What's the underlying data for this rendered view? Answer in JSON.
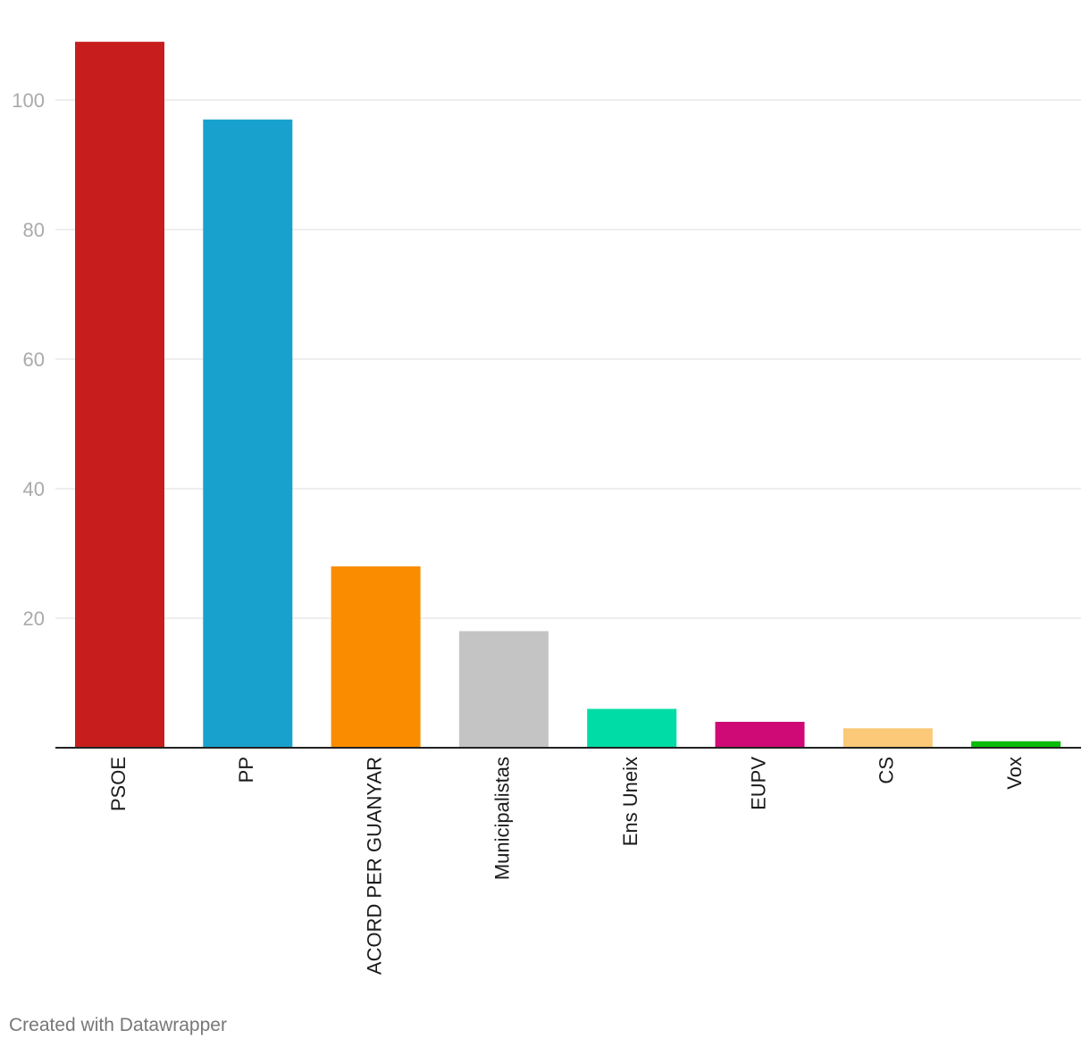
{
  "chart_data": {
    "type": "bar",
    "categories": [
      "PSOE",
      "PP",
      "ACORD PER GUANYAR",
      "Municipalistas",
      "Ens Uneix",
      "EUPV",
      "CS",
      "Vox"
    ],
    "values": [
      109,
      97,
      28,
      18,
      6,
      4,
      3,
      1
    ],
    "colors": [
      "#c71e1d",
      "#18a1cd",
      "#fa8c00",
      "#c4c4c4",
      "#00dca6",
      "#cf0a76",
      "#fbc977",
      "#09bb0a"
    ],
    "yticks": [
      20,
      40,
      60,
      80,
      100
    ],
    "ylim": [
      0,
      112
    ],
    "grid": true
  },
  "footer": {
    "credit": "Created with Datawrapper"
  }
}
